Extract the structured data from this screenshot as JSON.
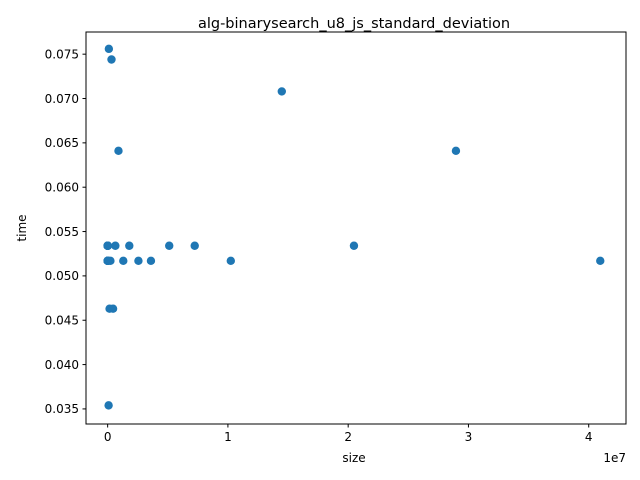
{
  "chart_data": {
    "type": "scatter",
    "title": "alg-binarysearch_u8_js_standard_deviation",
    "xlabel": "size",
    "ylabel": "time",
    "x_offset_label": "1e7",
    "xlim": [
      -1800000,
      43100000
    ],
    "ylim": [
      0.0333,
      0.0775
    ],
    "x_ticks": [
      0,
      10000000,
      20000000,
      30000000,
      40000000
    ],
    "x_tick_labels": [
      "0",
      "1",
      "2",
      "3",
      "4"
    ],
    "y_ticks": [
      0.035,
      0.04,
      0.045,
      0.05,
      0.055,
      0.06,
      0.065,
      0.07,
      0.075
    ],
    "y_tick_labels": [
      "0.035",
      "0.040",
      "0.045",
      "0.050",
      "0.055",
      "0.060",
      "0.065",
      "0.070",
      "0.075"
    ],
    "marker_color": "#1f77b4",
    "series": [
      {
        "name": "time",
        "points": [
          {
            "x": 10,
            "y": 0.0517
          },
          {
            "x": 20,
            "y": 0.0534
          },
          {
            "x": 40,
            "y": 0.0517
          },
          {
            "x": 80,
            "y": 0.0534
          },
          {
            "x": 160,
            "y": 0.0517
          },
          {
            "x": 320,
            "y": 0.0534
          },
          {
            "x": 640,
            "y": 0.0517
          },
          {
            "x": 1280,
            "y": 0.0534
          },
          {
            "x": 2560,
            "y": 0.0517
          },
          {
            "x": 5120,
            "y": 0.0534
          },
          {
            "x": 10000,
            "y": 0.0517
          },
          {
            "x": 20000,
            "y": 0.0534
          },
          {
            "x": 40000,
            "y": 0.0517
          },
          {
            "x": 80000,
            "y": 0.0354
          },
          {
            "x": 100000,
            "y": 0.0756
          },
          {
            "x": 160000,
            "y": 0.0463
          },
          {
            "x": 230000,
            "y": 0.0517
          },
          {
            "x": 320000,
            "y": 0.0744
          },
          {
            "x": 450000,
            "y": 0.0463
          },
          {
            "x": 640000,
            "y": 0.0534
          },
          {
            "x": 900000,
            "y": 0.0641
          },
          {
            "x": 1300000,
            "y": 0.0517
          },
          {
            "x": 1800000,
            "y": 0.0534
          },
          {
            "x": 2560000,
            "y": 0.0517
          },
          {
            "x": 3600000,
            "y": 0.0517
          },
          {
            "x": 5120000,
            "y": 0.0534
          },
          {
            "x": 7240000,
            "y": 0.0534
          },
          {
            "x": 10240000,
            "y": 0.0517
          },
          {
            "x": 14480000,
            "y": 0.0708
          },
          {
            "x": 20480000,
            "y": 0.0534
          },
          {
            "x": 28960000,
            "y": 0.0641
          },
          {
            "x": 40960000,
            "y": 0.0517
          }
        ]
      }
    ]
  }
}
